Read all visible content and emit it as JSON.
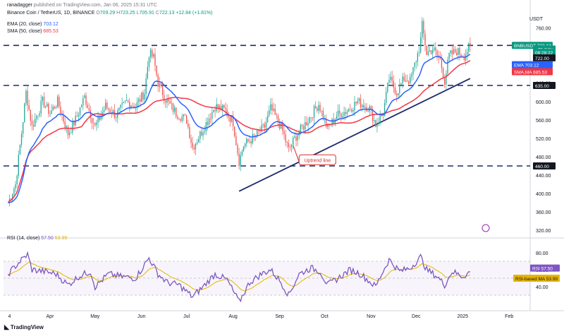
{
  "header": {
    "line1": {
      "author": "ranadagger",
      "published": "published on TradingView.com, Jan 06, 2025 15:31 UTC"
    },
    "line2": {
      "symbol": "Binance Coin / TetherUS, 1D, BINANCE",
      "open_label": "O",
      "open": "709.29",
      "high_label": "H",
      "high": "723.25",
      "low_label": "L",
      "low": "705.91",
      "close_label": "C",
      "close": "722.13",
      "change": "+12.84 (+1.81%)"
    },
    "ema": {
      "label": "EMA (20, close)",
      "value": "703.12"
    },
    "sma": {
      "label": "SMA (50, close)",
      "value": "685.53"
    },
    "rsi": {
      "label": "RSI (14, close)",
      "value1": "57.50",
      "value2": "53.99"
    }
  },
  "currency": "USDT",
  "footer_brand": "TradingView",
  "chart_data": {
    "type": "candlestick",
    "symbol": "BNBUSDT",
    "price_axis": {
      "ticks": [
        760,
        720,
        680,
        640,
        600,
        560,
        520,
        480,
        440,
        400,
        360,
        320
      ]
    },
    "time_axis": {
      "labels": [
        "4",
        "Apr",
        "May",
        "Jun",
        "Jul",
        "Aug",
        "Sep",
        "Oct",
        "Nov",
        "Dec",
        "2025",
        "Feb"
      ]
    },
    "rsi_axis": {
      "ticks": [
        80,
        60,
        40
      ]
    },
    "horizontal_levels": [
      722,
      635,
      460
    ],
    "trendline": {
      "label": "Uptrend line",
      "from": {
        "date": "Aug 05",
        "price": 405
      },
      "to": {
        "date": "Jan 06",
        "price": 650
      }
    },
    "price_badges": [
      {
        "text": "BNBUSDT",
        "sub": "722.13",
        "color": "#089981"
      },
      {
        "text": "+75.74%",
        "color": "#089981"
      },
      {
        "text": "08:28:22",
        "color": "#089981"
      },
      {
        "text": "722.00",
        "color": "#131722"
      },
      {
        "text": "EMA",
        "sub": "703.12",
        "color": "#2962ff"
      },
      {
        "text": "SMA,MA",
        "sub": "685.53",
        "color": "#f23645"
      },
      {
        "text": "635.00",
        "color": "#131722"
      },
      {
        "text": "460.00",
        "color": "#131722"
      }
    ],
    "rsi_badges": [
      {
        "text": "RSI",
        "sub": "57.50",
        "color": "#7e57c2"
      },
      {
        "text": "RSI-based MA",
        "sub": "53.99",
        "color": "#e8b400"
      }
    ],
    "series": [
      {
        "name": "EMA (20, close)",
        "color": "#2962ff",
        "last": 703.12
      },
      {
        "name": "SMA (50, close)",
        "color": "#f23645",
        "last": 685.53
      }
    ],
    "close_path": [
      [
        "Mar 04",
        380
      ],
      [
        "Mar 09",
        420
      ],
      [
        "Mar 14",
        560
      ],
      [
        "Mar 16",
        620
      ],
      [
        "Mar 20",
        545
      ],
      [
        "Mar 27",
        600
      ],
      [
        "Apr 01",
        575
      ],
      [
        "Apr 06",
        600
      ],
      [
        "Apr 13",
        530
      ],
      [
        "Apr 18",
        560
      ],
      [
        "Apr 24",
        610
      ],
      [
        "May 01",
        545
      ],
      [
        "May 08",
        590
      ],
      [
        "May 15",
        570
      ],
      [
        "May 22",
        600
      ],
      [
        "May 28",
        590
      ],
      [
        "Jun 03",
        620
      ],
      [
        "Jun 06",
        705
      ],
      [
        "Jun 09",
        695
      ],
      [
        "Jun 12",
        640
      ],
      [
        "Jun 17",
        605
      ],
      [
        "Jun 24",
        575
      ],
      [
        "Jul 01",
        560
      ],
      [
        "Jul 05",
        500
      ],
      [
        "Jul 12",
        540
      ],
      [
        "Jul 20",
        590
      ],
      [
        "Jul 27",
        580
      ],
      [
        "Aug 01",
        555
      ],
      [
        "Aug 05",
        470
      ],
      [
        "Aug 08",
        505
      ],
      [
        "Aug 14",
        520
      ],
      [
        "Aug 22",
        545
      ],
      [
        "Aug 26",
        585
      ],
      [
        "Sep 02",
        545
      ],
      [
        "Sep 07",
        495
      ],
      [
        "Sep 12",
        525
      ],
      [
        "Sep 20",
        560
      ],
      [
        "Sep 27",
        595
      ],
      [
        "Oct 03",
        540
      ],
      [
        "Oct 09",
        570
      ],
      [
        "Oct 16",
        580
      ],
      [
        "Oct 23",
        600
      ],
      [
        "Oct 31",
        585
      ],
      [
        "Nov 04",
        550
      ],
      [
        "Nov 09",
        575
      ],
      [
        "Nov 13",
        650
      ],
      [
        "Nov 18",
        620
      ],
      [
        "Nov 23",
        650
      ],
      [
        "Nov 27",
        645
      ],
      [
        "Dec 03",
        715
      ],
      [
        "Dec 04",
        735
      ],
      [
        "Dec 05",
        765
      ],
      [
        "Dec 08",
        705
      ],
      [
        "Dec 12",
        715
      ],
      [
        "Dec 17",
        690
      ],
      [
        "Dec 20",
        645
      ],
      [
        "Dec 23",
        700
      ],
      [
        "Dec 28",
        710
      ],
      [
        "Jan 02",
        700
      ],
      [
        "Jan 06",
        722
      ]
    ],
    "rsi_path": [
      [
        "Mar 04",
        55
      ],
      [
        "Mar 12",
        70
      ],
      [
        "Mar 17",
        78
      ],
      [
        "Mar 20",
        60
      ],
      [
        "Mar 28",
        58
      ],
      [
        "Apr 05",
        55
      ],
      [
        "Apr 13",
        42
      ],
      [
        "Apr 20",
        52
      ],
      [
        "Apr 28",
        58
      ],
      [
        "May 01",
        40
      ],
      [
        "May 10",
        55
      ],
      [
        "May 18",
        52
      ],
      [
        "May 28",
        50
      ],
      [
        "Jun 06",
        74
      ],
      [
        "Jun 12",
        55
      ],
      [
        "Jun 18",
        45
      ],
      [
        "Jun 26",
        42
      ],
      [
        "Jul 05",
        28
      ],
      [
        "Jul 12",
        40
      ],
      [
        "Jul 20",
        55
      ],
      [
        "Jul 28",
        48
      ],
      [
        "Aug 05",
        22
      ],
      [
        "Aug 12",
        45
      ],
      [
        "Aug 20",
        55
      ],
      [
        "Aug 26",
        60
      ],
      [
        "Sep 02",
        45
      ],
      [
        "Sep 07",
        30
      ],
      [
        "Sep 14",
        55
      ],
      [
        "Sep 22",
        62
      ],
      [
        "Sep 28",
        58
      ],
      [
        "Oct 03",
        42
      ],
      [
        "Oct 10",
        50
      ],
      [
        "Oct 18",
        60
      ],
      [
        "Oct 25",
        55
      ],
      [
        "Nov 04",
        40
      ],
      [
        "Nov 08",
        55
      ],
      [
        "Nov 13",
        72
      ],
      [
        "Nov 20",
        58
      ],
      [
        "Nov 27",
        62
      ],
      [
        "Dec 04",
        75
      ],
      [
        "Dec 08",
        60
      ],
      [
        "Dec 15",
        52
      ],
      [
        "Dec 20",
        42
      ],
      [
        "Dec 25",
        58
      ],
      [
        "Jan 01",
        52
      ],
      [
        "Jan 06",
        57.5
      ]
    ]
  }
}
